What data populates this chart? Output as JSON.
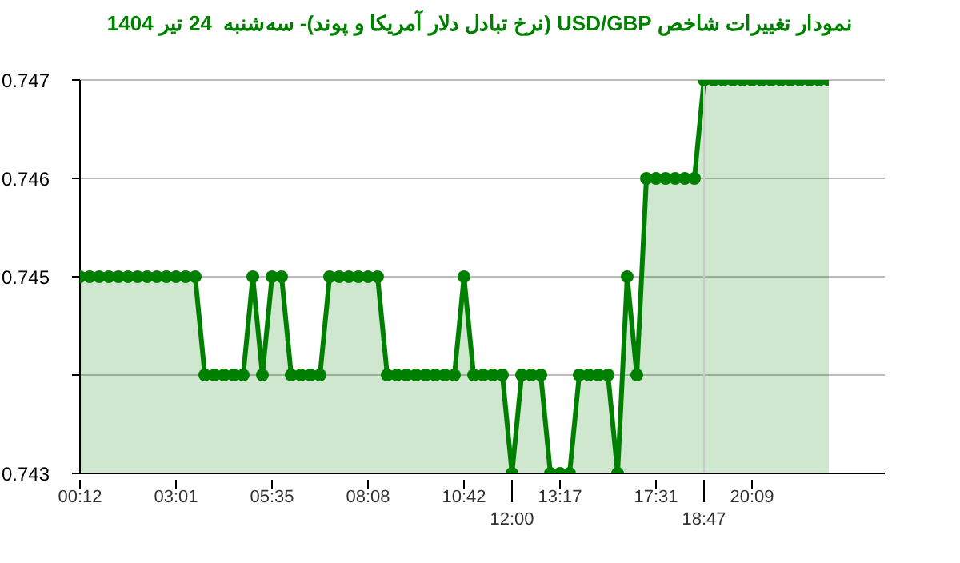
{
  "chart_data": {
    "type": "area",
    "title": "نمودار تغییرات شاخص USD/GBP (نرخ تبادل دلار آمریکا و پوند)- سه‌شنبه  24 تیر 1404",
    "categories": [
      "00:12",
      null,
      null,
      null,
      null,
      null,
      null,
      null,
      null,
      null,
      "03:01",
      null,
      null,
      null,
      null,
      null,
      null,
      null,
      null,
      null,
      "05:35",
      null,
      null,
      null,
      null,
      null,
      null,
      null,
      null,
      null,
      "08:08",
      null,
      null,
      null,
      null,
      null,
      null,
      null,
      null,
      null,
      "10:42",
      null,
      null,
      null,
      null,
      "12:00",
      null,
      null,
      null,
      null,
      "13:17",
      null,
      null,
      null,
      null,
      null,
      null,
      null,
      null,
      null,
      "17:31",
      null,
      null,
      null,
      null,
      "18:47",
      null,
      null,
      null,
      null,
      "20:09",
      null,
      null,
      null,
      null,
      null,
      null,
      null,
      null
    ],
    "series": [
      {
        "color": "#008000",
        "values": [
          0.745,
          0.745,
          0.745,
          0.745,
          0.745,
          0.745,
          0.745,
          0.745,
          0.745,
          0.745,
          0.745,
          0.745,
          0.745,
          0.744,
          0.744,
          0.744,
          0.744,
          0.744,
          0.745,
          0.744,
          0.745,
          0.745,
          0.744,
          0.744,
          0.744,
          0.744,
          0.745,
          0.745,
          0.745,
          0.745,
          0.745,
          0.745,
          0.744,
          0.744,
          0.744,
          0.744,
          0.744,
          0.744,
          0.744,
          0.744,
          0.745,
          0.744,
          0.744,
          0.744,
          0.744,
          0.743,
          0.744,
          0.744,
          0.744,
          0.743,
          0.743,
          0.743,
          0.744,
          0.744,
          0.744,
          0.744,
          0.743,
          0.745,
          0.744,
          0.746,
          0.746,
          0.746,
          0.746,
          0.746,
          0.746,
          0.747,
          0.747,
          0.747,
          0.747,
          0.747,
          0.747,
          0.747,
          0.747,
          0.747,
          0.747,
          0.747,
          0.747,
          0.747,
          0.747
        ]
      }
    ],
    "ylim": [
      0.743,
      0.747
    ],
    "yticks": [
      0.743,
      {
        "value": 0.744,
        "label": null
      },
      0.745,
      0.746,
      0.747
    ],
    "grid": "y",
    "marker": "circle",
    "line_style": "solid",
    "ref_lines": [
      {
        "axis": "x",
        "value": "18:47",
        "color": "#cccccc"
      }
    ]
  }
}
